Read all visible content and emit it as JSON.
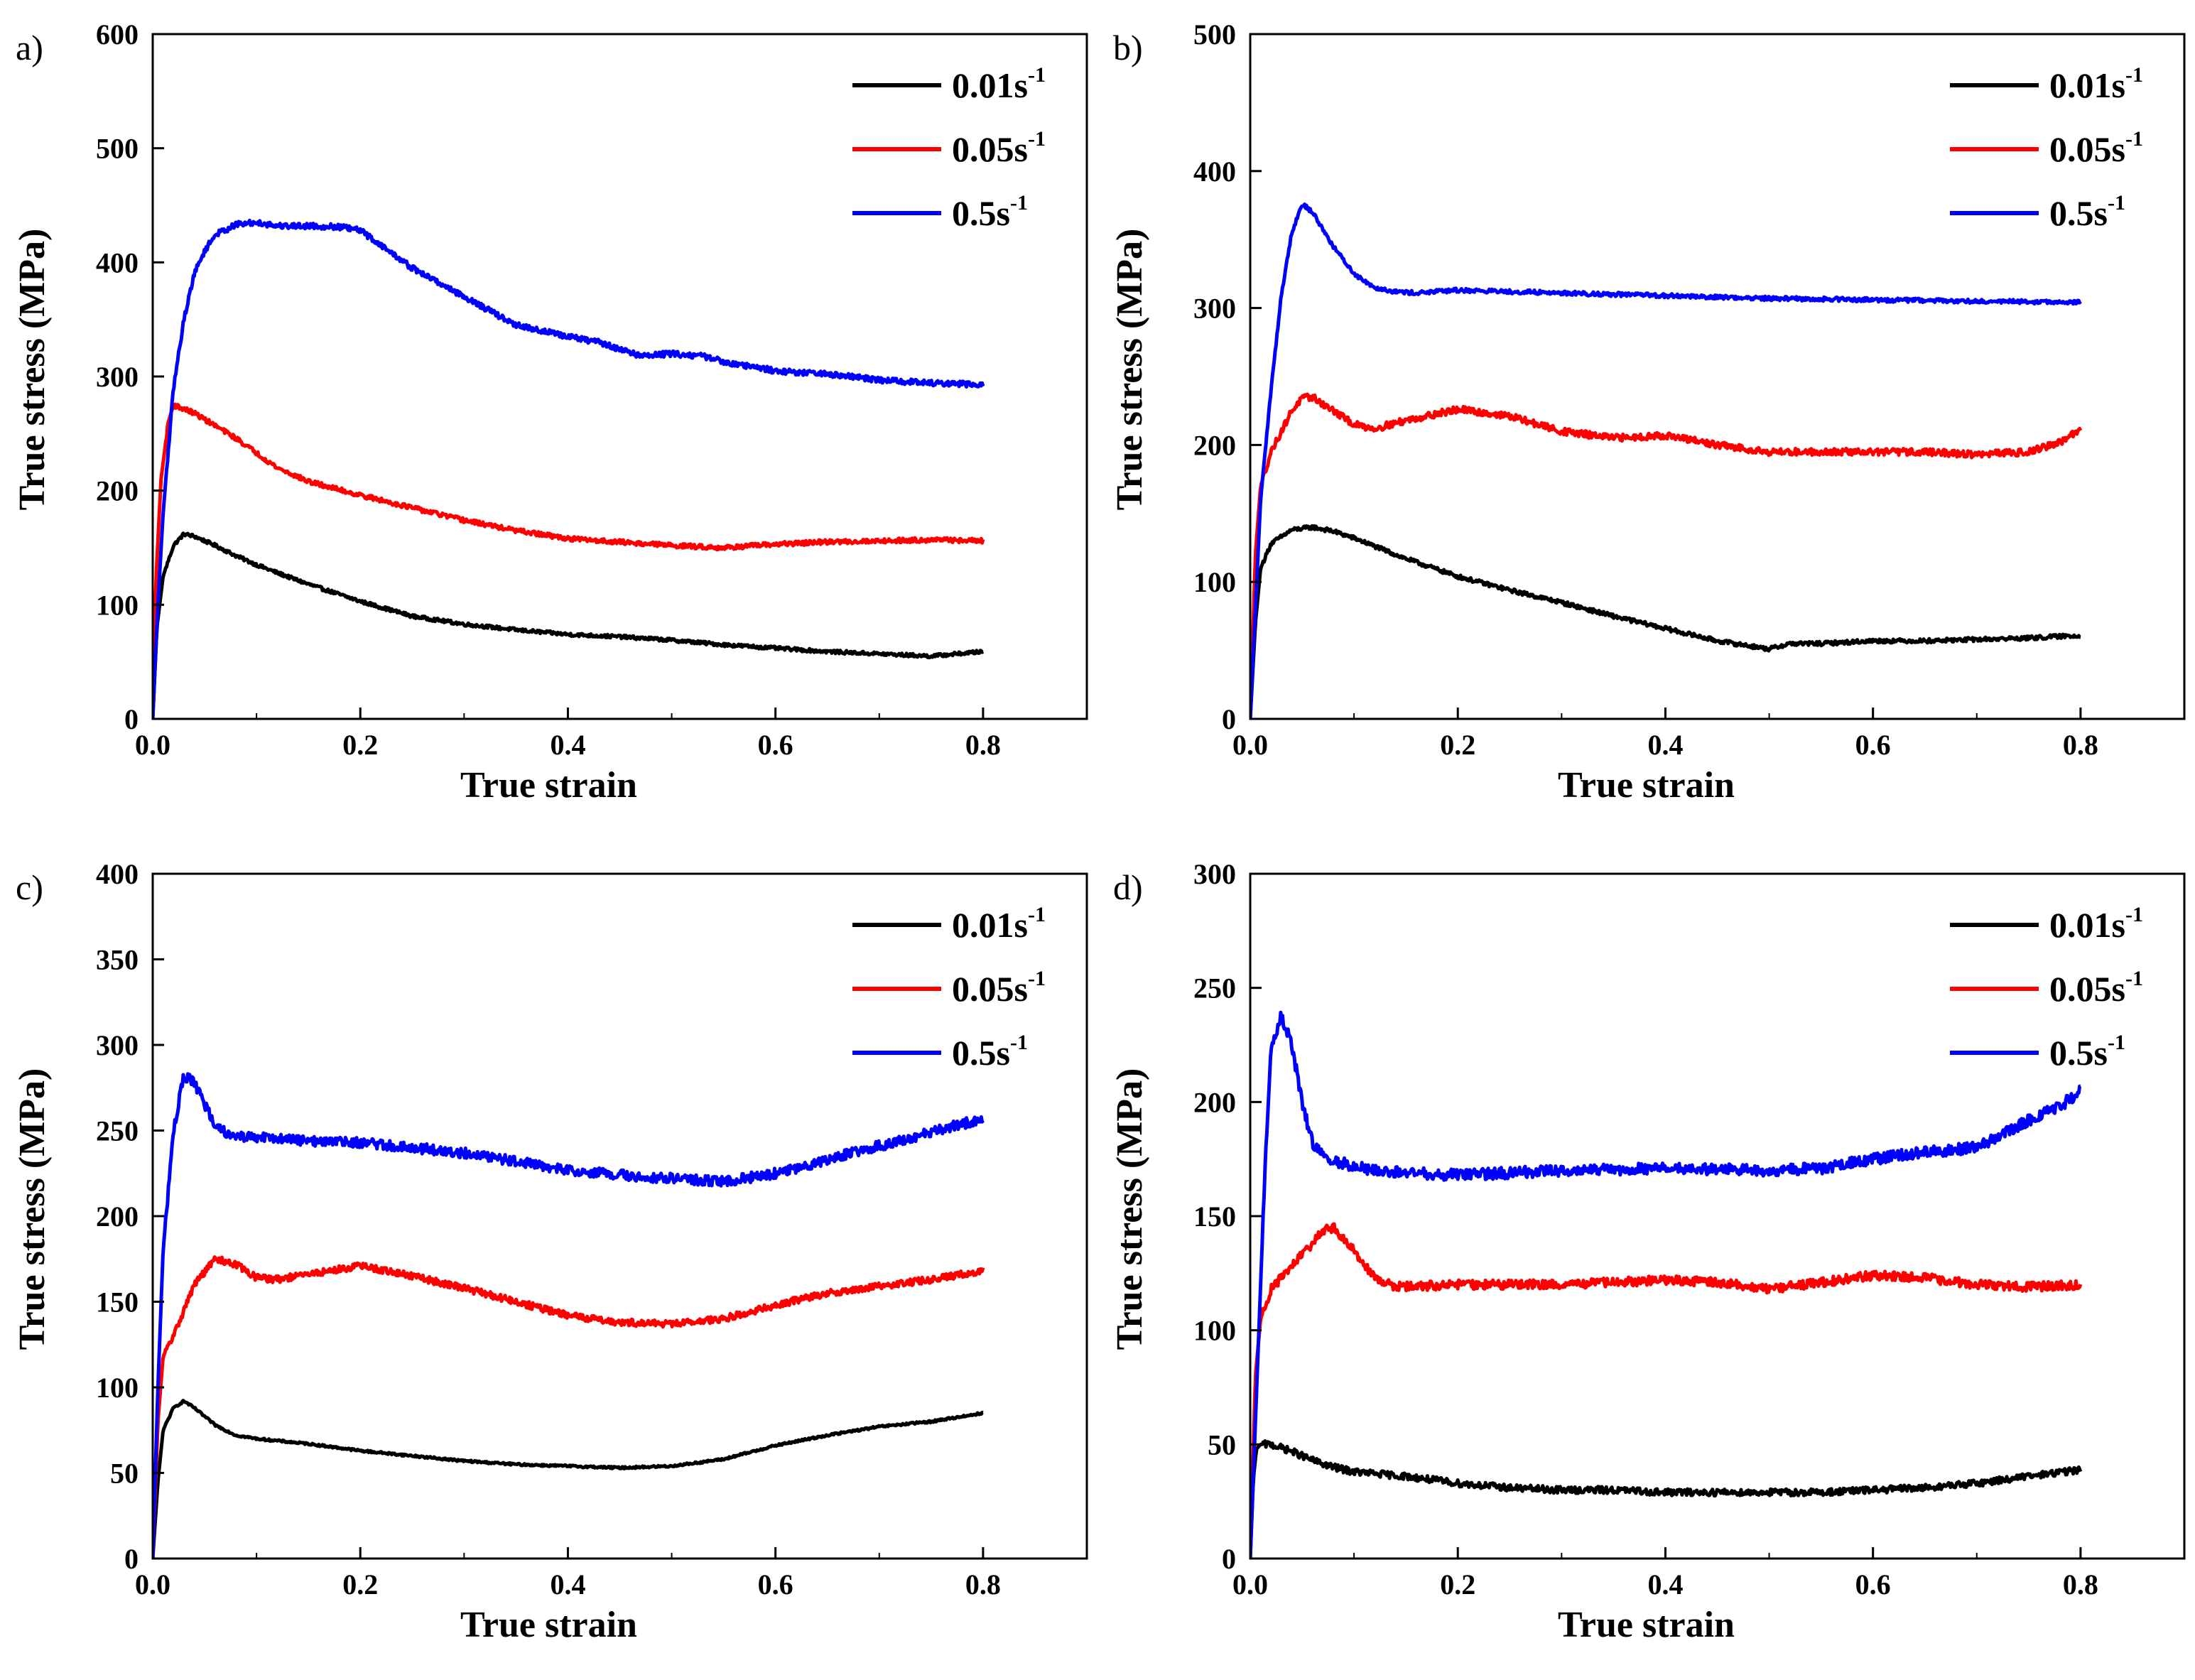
{
  "figure": {
    "chart_data": [
      {
        "panel_label": "a)",
        "type": "line",
        "xlabel": "True strain",
        "ylabel": "True stress (MPa)",
        "xlim": [
          0,
          0.9
        ],
        "ylim": [
          0,
          600
        ],
        "xticks": [
          "0.0",
          "0.2",
          "0.4",
          "0.6",
          "0.8"
        ],
        "yticks": [
          "0",
          "100",
          "200",
          "300",
          "400",
          "500",
          "600"
        ],
        "legend_position": "top-right",
        "series": [
          {
            "name": "0.01s",
            "superscript": "-1",
            "color": "#000000",
            "noise": 1.5,
            "x": [
              0,
              0.004,
              0.01,
              0.02,
              0.03,
              0.04,
              0.06,
              0.08,
              0.1,
              0.12,
              0.15,
              0.2,
              0.25,
              0.3,
              0.35,
              0.4,
              0.45,
              0.5,
              0.55,
              0.6,
              0.65,
              0.7,
              0.75,
              0.8
            ],
            "y": [
              0,
              80,
              125,
              152,
              162,
              160,
              152,
              143,
              135,
              128,
              118,
              103,
              90,
              83,
              78,
              74,
              72,
              69,
              65,
              62,
              59,
              57,
              55,
              59
            ]
          },
          {
            "name": "0.05s",
            "superscript": "-1",
            "color": "#ff0000",
            "noise": 2,
            "x": [
              0,
              0.003,
              0.008,
              0.015,
              0.02,
              0.04,
              0.06,
              0.08,
              0.1,
              0.12,
              0.15,
              0.2,
              0.25,
              0.3,
              0.35,
              0.4,
              0.45,
              0.5,
              0.55,
              0.6,
              0.65,
              0.7,
              0.75,
              0.8
            ],
            "y": [
              0,
              120,
              210,
              260,
              275,
              268,
              257,
              246,
              233,
              220,
              208,
              196,
              185,
              174,
              165,
              158,
              155,
              152,
              150,
              153,
              155,
              156,
              157,
              156
            ]
          },
          {
            "name": "0.5s",
            "superscript": "-1",
            "color": "#0000ff",
            "noise": 2.5,
            "x": [
              0,
              0.005,
              0.01,
              0.02,
              0.03,
              0.04,
              0.05,
              0.06,
              0.08,
              0.1,
              0.12,
              0.15,
              0.18,
              0.2,
              0.22,
              0.25,
              0.3,
              0.35,
              0.4,
              0.43,
              0.47,
              0.5,
              0.53,
              0.55,
              0.6,
              0.65,
              0.7,
              0.75,
              0.8
            ],
            "y": [
              0,
              100,
              180,
              290,
              350,
              390,
              410,
              424,
              433,
              435,
              432,
              432,
              431,
              428,
              415,
              395,
              370,
              345,
              335,
              330,
              318,
              320,
              318,
              313,
              305,
              302,
              297,
              294,
              293
            ]
          }
        ]
      },
      {
        "panel_label": "b)",
        "type": "line",
        "xlabel": "True strain",
        "ylabel": "True stress (MPa)",
        "xlim": [
          0,
          0.9
        ],
        "ylim": [
          0,
          500
        ],
        "xticks": [
          "0.0",
          "0.2",
          "0.4",
          "0.6",
          "0.8"
        ],
        "yticks": [
          "0",
          "100",
          "200",
          "300",
          "400",
          "500"
        ],
        "legend_position": "top-right",
        "series": [
          {
            "name": "0.01s",
            "superscript": "-1",
            "color": "#000000",
            "noise": 1.5,
            "x": [
              0,
              0.005,
              0.01,
              0.02,
              0.04,
              0.06,
              0.08,
              0.1,
              0.15,
              0.2,
              0.25,
              0.3,
              0.35,
              0.4,
              0.45,
              0.5,
              0.52,
              0.55,
              0.6,
              0.65,
              0.7,
              0.75,
              0.8
            ],
            "y": [
              0,
              70,
              110,
              128,
              138,
              140,
              137,
              132,
              117,
              104,
              94,
              85,
              75,
              66,
              57,
              51,
              55,
              55,
              57,
              57,
              58,
              59,
              61
            ]
          },
          {
            "name": "0.05s",
            "superscript": "-1",
            "color": "#ff0000",
            "noise": 2.5,
            "x": [
              0,
              0.005,
              0.01,
              0.02,
              0.04,
              0.05,
              0.06,
              0.08,
              0.1,
              0.12,
              0.15,
              0.2,
              0.25,
              0.3,
              0.35,
              0.4,
              0.45,
              0.5,
              0.55,
              0.6,
              0.65,
              0.7,
              0.75,
              0.78,
              0.8
            ],
            "y": [
              0,
              120,
              170,
              195,
              225,
              234,
              235,
              225,
              215,
              212,
              218,
              226,
              221,
              210,
              205,
              207,
              200,
              195,
              195,
              195,
              195,
              193,
              195,
              202,
              211
            ]
          },
          {
            "name": "0.5s",
            "superscript": "-1",
            "color": "#0000ff",
            "noise": 1.5,
            "x": [
              0,
              0.005,
              0.01,
              0.02,
              0.03,
              0.04,
              0.05,
              0.06,
              0.08,
              0.1,
              0.12,
              0.14,
              0.16,
              0.2,
              0.3,
              0.4,
              0.5,
              0.6,
              0.7,
              0.8
            ],
            "y": [
              0,
              80,
              160,
              240,
              310,
              355,
              376,
              370,
              345,
              325,
              315,
              312,
              311,
              313,
              311,
              309,
              307,
              306,
              305,
              304
            ]
          }
        ]
      },
      {
        "panel_label": "c)",
        "type": "line",
        "xlabel": "True strain",
        "ylabel": "True stress (MPa)",
        "xlim": [
          0,
          0.9
        ],
        "ylim": [
          0,
          400
        ],
        "xticks": [
          "0.0",
          "0.2",
          "0.4",
          "0.6",
          "0.8"
        ],
        "yticks": [
          "0",
          "50",
          "100",
          "150",
          "200",
          "250",
          "300",
          "350",
          "400"
        ],
        "legend_position": "top-right",
        "series": [
          {
            "name": "0.01s",
            "superscript": "-1",
            "color": "#000000",
            "noise": 0.6,
            "x": [
              0,
              0.005,
              0.01,
              0.02,
              0.03,
              0.04,
              0.06,
              0.08,
              0.1,
              0.15,
              0.2,
              0.25,
              0.3,
              0.35,
              0.4,
              0.45,
              0.5,
              0.55,
              0.6,
              0.65,
              0.7,
              0.75,
              0.8
            ],
            "y": [
              0,
              45,
              75,
              88,
              92,
              88,
              78,
              72,
              70,
              67,
              63,
              60,
              57,
              55,
              54,
              53,
              54,
              58,
              66,
              72,
              77,
              80,
              85
            ]
          },
          {
            "name": "0.05s",
            "superscript": "-1",
            "color": "#ff0000",
            "noise": 2,
            "x": [
              0,
              0.005,
              0.01,
              0.02,
              0.04,
              0.06,
              0.08,
              0.1,
              0.12,
              0.15,
              0.2,
              0.25,
              0.3,
              0.35,
              0.4,
              0.45,
              0.5,
              0.55,
              0.6,
              0.65,
              0.7,
              0.75,
              0.8
            ],
            "y": [
              0,
              80,
              118,
              130,
              160,
              175,
              172,
              164,
              163,
              166,
              171,
              165,
              158,
              150,
              142,
              138,
              137,
              140,
              148,
              155,
              159,
              163,
              168
            ]
          },
          {
            "name": "0.5s",
            "superscript": "-1",
            "color": "#0000ff",
            "noise": 3,
            "x": [
              0,
              0.005,
              0.01,
              0.02,
              0.03,
              0.04,
              0.05,
              0.06,
              0.07,
              0.08,
              0.1,
              0.15,
              0.2,
              0.25,
              0.3,
              0.35,
              0.4,
              0.45,
              0.5,
              0.55,
              0.6,
              0.65,
              0.7,
              0.75,
              0.8
            ],
            "y": [
              0,
              100,
              180,
              250,
              282,
              278,
              265,
              254,
              249,
              247,
              246,
              244,
              243,
              240,
              237,
              232,
              227,
              224,
              222,
              220,
              225,
              233,
              241,
              249,
              257
            ]
          }
        ]
      },
      {
        "panel_label": "d)",
        "type": "line",
        "xlabel": "True strain",
        "ylabel": "True stress (MPa)",
        "xlim": [
          0,
          0.9
        ],
        "ylim": [
          0,
          300
        ],
        "xticks": [
          "0.0",
          "0.2",
          "0.4",
          "0.6",
          "0.8"
        ],
        "yticks": [
          "0",
          "50",
          "100",
          "150",
          "200",
          "250",
          "300"
        ],
        "legend_position": "top-right",
        "series": [
          {
            "name": "0.01s",
            "superscript": "-1",
            "color": "#000000",
            "noise": 1.5,
            "x": [
              0,
              0.003,
              0.006,
              0.01,
              0.02,
              0.04,
              0.06,
              0.08,
              0.1,
              0.15,
              0.2,
              0.25,
              0.3,
              0.35,
              0.4,
              0.45,
              0.5,
              0.55,
              0.6,
              0.65,
              0.7,
              0.75,
              0.8
            ],
            "y": [
              0,
              35,
              48,
              50,
              50,
              47,
              43,
              40,
              38,
              36,
              33,
              31,
              30,
              30,
              29,
              29,
              29,
              29,
              30,
              31,
              33,
              36,
              39
            ]
          },
          {
            "name": "0.05s",
            "superscript": "-1",
            "color": "#ff0000",
            "noise": 2,
            "x": [
              0,
              0.005,
              0.01,
              0.02,
              0.04,
              0.06,
              0.07,
              0.08,
              0.1,
              0.12,
              0.14,
              0.2,
              0.3,
              0.4,
              0.45,
              0.5,
              0.55,
              0.6,
              0.65,
              0.7,
              0.75,
              0.8
            ],
            "y": [
              0,
              80,
              105,
              118,
              128,
              138,
              144,
              145,
              135,
              123,
              119,
              120,
              120,
              122,
              121,
              118,
              121,
              124,
              123,
              120,
              119,
              120
            ]
          },
          {
            "name": "0.5s",
            "superscript": "-1",
            "color": "#0000ff",
            "noise": 2.5,
            "x": [
              0,
              0.005,
              0.01,
              0.015,
              0.02,
              0.03,
              0.04,
              0.05,
              0.06,
              0.07,
              0.08,
              0.1,
              0.12,
              0.15,
              0.2,
              0.3,
              0.4,
              0.5,
              0.55,
              0.6,
              0.65,
              0.7,
              0.72,
              0.75,
              0.78,
              0.8
            ],
            "y": [
              0,
              60,
              120,
              180,
              222,
              238,
              225,
              200,
              182,
              176,
              174,
              172,
              170,
              169,
              168,
              170,
              171,
              170,
              171,
              175,
              178,
              180,
              185,
              192,
              198,
              205
            ]
          }
        ]
      }
    ]
  }
}
